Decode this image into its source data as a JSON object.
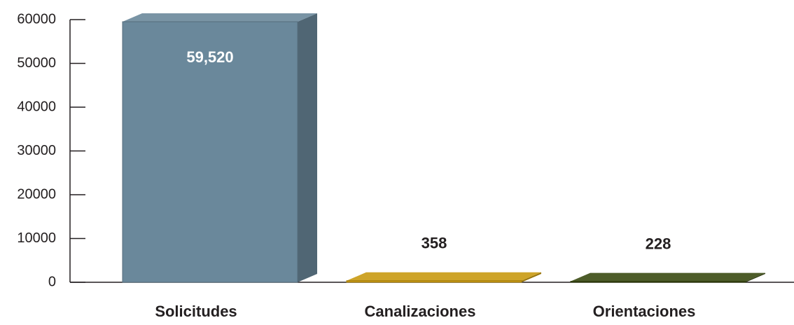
{
  "chart_data": {
    "type": "bar3d",
    "categories": [
      "Solicitudes",
      "Canalizaciones",
      "Orientaciones"
    ],
    "values": [
      59520,
      358,
      228
    ],
    "value_labels": [
      "59,520",
      "358",
      "228"
    ],
    "colors": [
      "#6a889b",
      "#c99a12",
      "#3a4a12"
    ],
    "ylim": [
      0,
      60000
    ],
    "yticks": [
      0,
      10000,
      20000,
      30000,
      40000,
      50000,
      60000
    ]
  }
}
